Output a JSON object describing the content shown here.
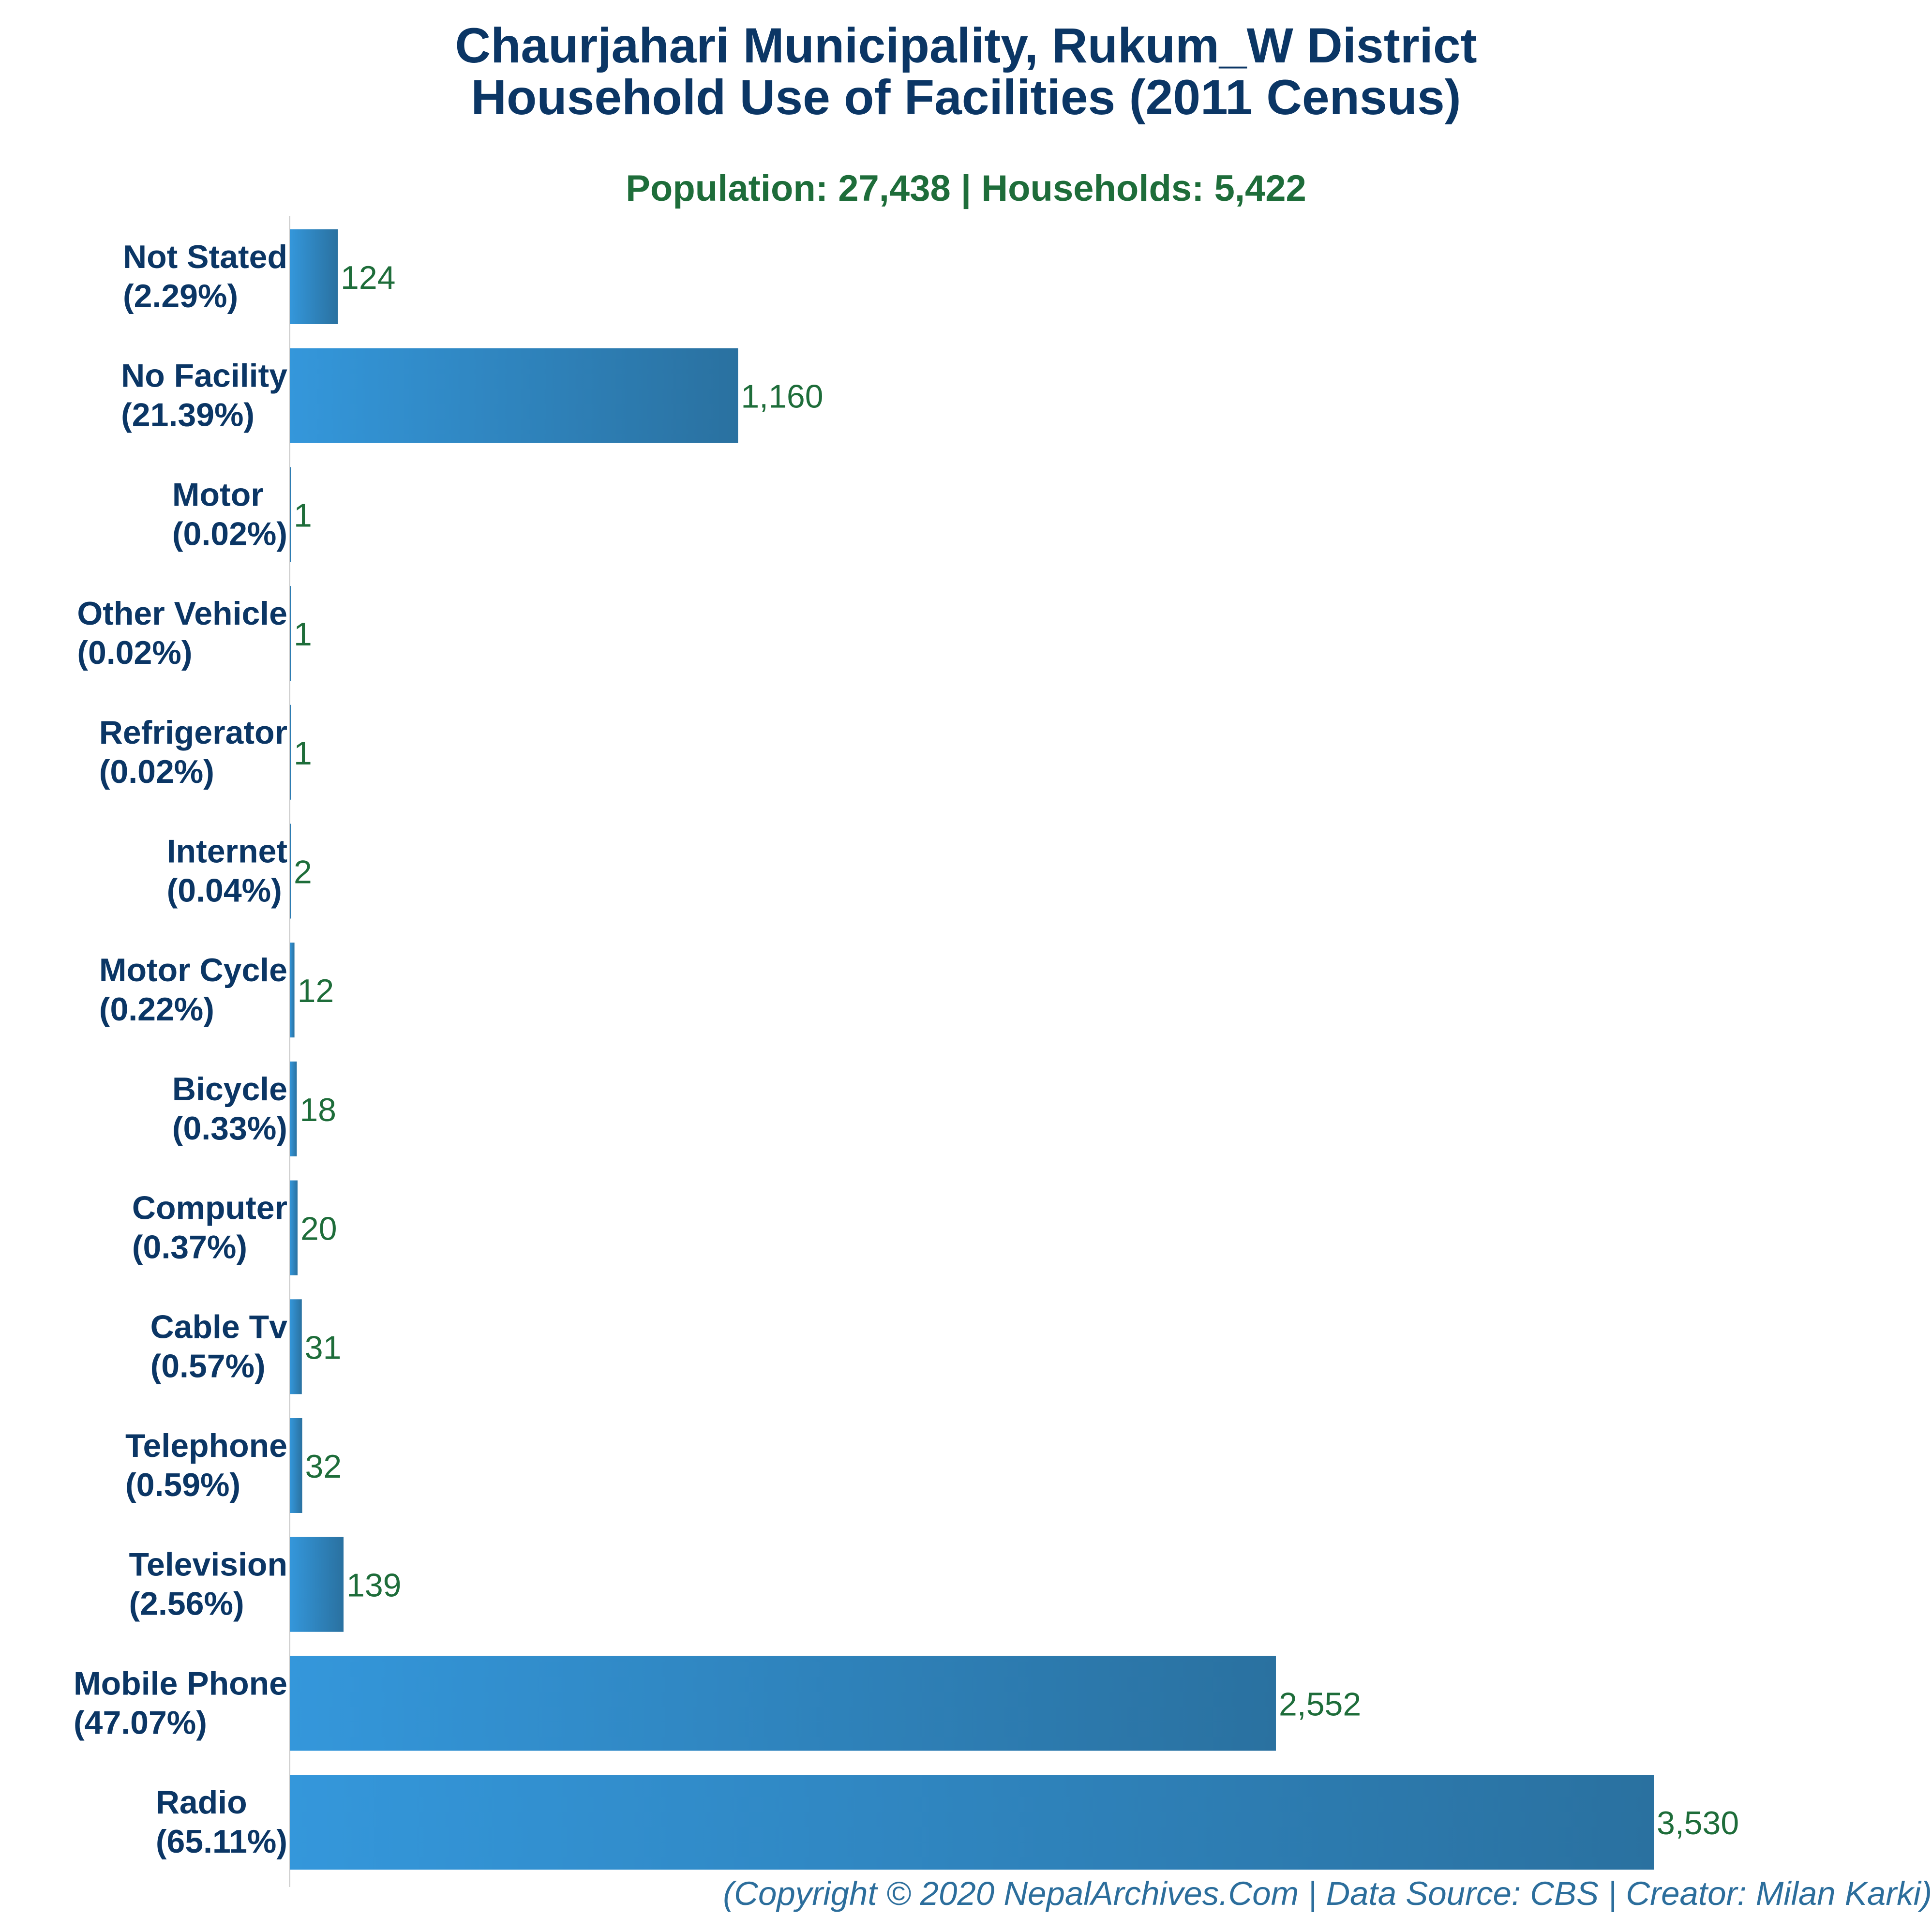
{
  "title_line1": "Chaurjahari Municipality, Rukum_W District",
  "title_line2": "Household Use of Facilities (2011 Census)",
  "subtitle": "Population: 27,438 | Households: 5,422",
  "footer": "(Copyright © 2020 NepalArchives.Com | Data Source: CBS | Creator: Milan Karki)",
  "colors": {
    "title": "#0b3665",
    "subtitle": "#1e6d3a",
    "value_label": "#1e6d3a",
    "category_label": "#0b3665",
    "bar_gradient_start": "#3497db",
    "bar_gradient_end": "#2a71a0",
    "footer": "#2c6e9c"
  },
  "chart_data": {
    "type": "bar",
    "orientation": "horizontal",
    "categories": [
      "Not Stated",
      "No Facility",
      "Motor",
      "Other Vehicle",
      "Refrigerator",
      "Internet",
      "Motor Cycle",
      "Bicycle",
      "Computer",
      "Cable Tv",
      "Telephone",
      "Television",
      "Mobile Phone",
      "Radio"
    ],
    "percent_labels": [
      "(2.29%)",
      "(21.39%)",
      "(0.02%)",
      "(0.02%)",
      "(0.02%)",
      "(0.04%)",
      "(0.22%)",
      "(0.33%)",
      "(0.37%)",
      "(0.57%)",
      "(0.59%)",
      "(2.56%)",
      "(47.07%)",
      "(65.11%)"
    ],
    "values": [
      124,
      1160,
      1,
      1,
      1,
      2,
      12,
      18,
      20,
      31,
      32,
      139,
      2552,
      3530
    ],
    "value_labels": [
      "124",
      "1,160",
      "1",
      "1",
      "1",
      "2",
      "12",
      "18",
      "20",
      "31",
      "32",
      "139",
      "2,552",
      "3,530"
    ],
    "xlim": [
      0,
      3530
    ],
    "grid": false,
    "legend": false
  }
}
